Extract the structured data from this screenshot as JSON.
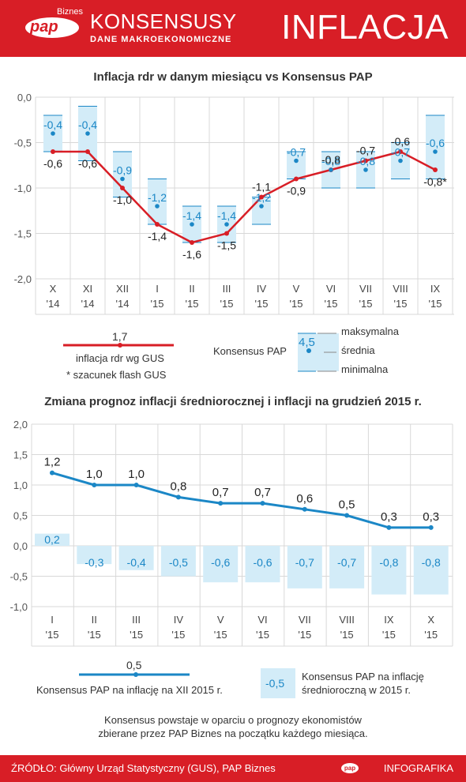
{
  "header": {
    "logo_text": "pap",
    "logo_sub": "Biznes",
    "title": "KONSENSUSY",
    "subtitle": "DANE MAKROEKONOMICZNE",
    "section": "INFLACJA"
  },
  "chart1": {
    "title": "Inflacja rdr w danym miesiącu vs Konsensus PAP"
  },
  "chart2": {
    "title": "Zmiana prognoz inflacji średniorocznej i inflacji na grudzień 2015 r."
  },
  "legend1": {
    "value": "1,7",
    "line_label": "inflacja rdr wg GUS",
    "note": "* szacunek flash GUS",
    "consensus": "Konsensus PAP",
    "box_value": "4,5",
    "max": "maksymalna",
    "mid": "średnia",
    "min": "minimalna"
  },
  "legend2": {
    "line_value": "0,5",
    "line_label": "Konsensus PAP na inflację na XII 2015 r.",
    "box_value": "-0,5",
    "box_label_1": "Konsensus PAP na inflację",
    "box_label_2": "średnioroczną w 2015 r."
  },
  "footnote": {
    "line1": "Konsensus powstaje w oparciu o prognozy ekonomistów",
    "line2": "zbierane przez PAP Biznes na początku każdego miesiąca."
  },
  "footer": {
    "source": "ŹRÓDŁO: Główny Urząd Statystyczny (GUS), PAP Biznes",
    "logo": "pap",
    "brand": "INFOGRAFIKA"
  },
  "colors": {
    "red": "#d81e26",
    "blue": "#1b87c6",
    "box_fill": "#d3ecf8",
    "grid": "#d8d8d8"
  },
  "chart_data": [
    {
      "type": "line",
      "title": "Inflacja rdr w danym miesiącu vs Konsensus PAP",
      "categories": [
        [
          "X",
          "'14"
        ],
        [
          "XI",
          "'14"
        ],
        [
          "XII",
          "'14"
        ],
        [
          "I",
          "'15"
        ],
        [
          "II",
          "'15"
        ],
        [
          "III",
          "'15"
        ],
        [
          "IV",
          "'15"
        ],
        [
          "V",
          "'15"
        ],
        [
          "VI",
          "'15"
        ],
        [
          "VII",
          "'15"
        ],
        [
          "VIII",
          "'15"
        ],
        [
          "IX",
          "'15"
        ]
      ],
      "y_ticks": [
        "0,0",
        "-0,5",
        "-1,0",
        "-1,5",
        "-2,0"
      ],
      "ylim": [
        -2.0,
        0.0
      ],
      "series": [
        {
          "name": "inflacja rdr wg GUS",
          "values": [
            -0.6,
            -0.6,
            -1.0,
            -1.4,
            -1.6,
            -1.5,
            -1.1,
            -0.9,
            -0.8,
            -0.7,
            -0.6,
            -0.8
          ],
          "labels": [
            "-0,6",
            "-0,6",
            "-1,0",
            "-1,4",
            "-1,6",
            "-1,5",
            "-1,1",
            "-0,9",
            "-0,8",
            "-0,7",
            "-0,6",
            "-0,8*"
          ],
          "label_pos": [
            "b",
            "b",
            "b",
            "b",
            "b",
            "b",
            "a",
            "b",
            "a",
            "a",
            "a",
            "b"
          ]
        },
        {
          "name": "Konsensus PAP",
          "mean": [
            -0.4,
            -0.4,
            -0.9,
            -1.2,
            -1.4,
            -1.4,
            -1.2,
            -0.7,
            -0.8,
            -0.8,
            -0.7,
            -0.6
          ],
          "max": [
            -0.2,
            -0.1,
            -0.6,
            -0.9,
            -1.2,
            -1.2,
            -1.1,
            -0.6,
            -0.6,
            -0.6,
            -0.5,
            -0.2
          ],
          "min": [
            -0.6,
            -0.7,
            -1.1,
            -1.4,
            -1.6,
            -1.6,
            -1.4,
            -0.9,
            -1.0,
            -1.0,
            -0.9,
            -0.9
          ],
          "labels": [
            "-0,4",
            "-0,4",
            "-0,9",
            "-1,2",
            "-1,4",
            "-1,4",
            "-1,2",
            "-0,7",
            "-0,8",
            "-0,8",
            "-0,7",
            "-0,6"
          ]
        }
      ]
    },
    {
      "type": "line",
      "title": "Zmiana prognoz inflacji średniorocznej i inflacji na grudzień 2015 r.",
      "categories": [
        [
          "I",
          "'15"
        ],
        [
          "II",
          "'15"
        ],
        [
          "III",
          "'15"
        ],
        [
          "IV",
          "'15"
        ],
        [
          "V",
          "'15"
        ],
        [
          "VI",
          "'15"
        ],
        [
          "VII",
          "'15"
        ],
        [
          "VIII",
          "'15"
        ],
        [
          "IX",
          "'15"
        ],
        [
          "X",
          "'15"
        ]
      ],
      "y_ticks": [
        "2,0",
        "1,5",
        "1,0",
        "0,5",
        "0,0",
        "-0,5",
        "-1,0"
      ],
      "ylim": [
        -1.0,
        2.0
      ],
      "series": [
        {
          "name": "Konsensus PAP na inflację na XII 2015 r.",
          "values": [
            1.2,
            1.0,
            1.0,
            0.8,
            0.7,
            0.7,
            0.6,
            0.5,
            0.3,
            0.3
          ],
          "labels": [
            "1,2",
            "1,0",
            "1,0",
            "0,8",
            "0,7",
            "0,7",
            "0,6",
            "0,5",
            "0,3",
            "0,3"
          ]
        },
        {
          "name": "Konsensus PAP na inflację średnioroczną w 2015 r.",
          "values": [
            0.2,
            -0.3,
            -0.4,
            -0.5,
            -0.6,
            -0.6,
            -0.7,
            -0.7,
            -0.8,
            -0.8
          ],
          "labels": [
            "0,2",
            "-0,3",
            "-0,4",
            "-0,5",
            "-0,6",
            "-0,6",
            "-0,7",
            "-0,7",
            "-0,8",
            "-0,8"
          ]
        }
      ]
    }
  ]
}
